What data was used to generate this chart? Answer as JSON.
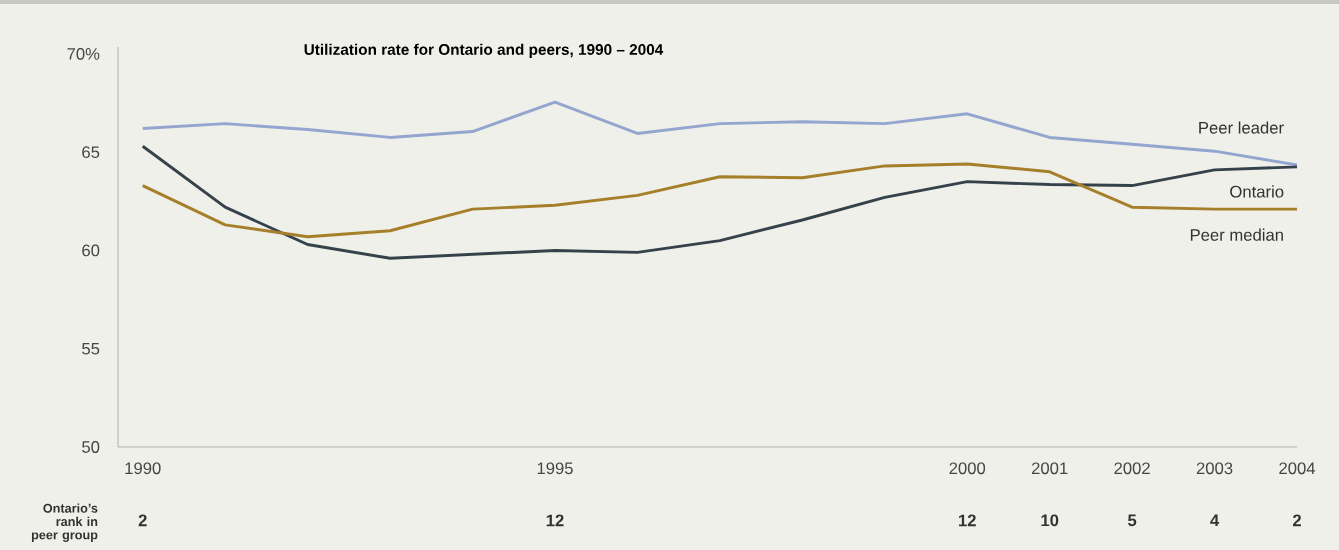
{
  "chart_data": {
    "type": "line",
    "title": "Utilization rate for Ontario and peers, 1990 – 2004",
    "x": [
      1990,
      1991,
      1992,
      1993,
      1994,
      1995,
      1996,
      1997,
      1998,
      1999,
      2000,
      2001,
      2002,
      2003,
      2004
    ],
    "series": [
      {
        "name": "Peer leader",
        "color": "#94a5cf",
        "values": [
          66.2,
          66.45,
          66.15,
          65.75,
          66.05,
          67.55,
          65.95,
          66.45,
          66.55,
          66.45,
          66.95,
          65.75,
          65.4,
          65.05,
          64.35
        ]
      },
      {
        "name": "Ontario",
        "color": "#36424a",
        "values": [
          65.3,
          62.2,
          60.3,
          59.6,
          59.8,
          60.0,
          59.9,
          60.5,
          61.55,
          62.7,
          63.5,
          63.35,
          63.3,
          64.1,
          64.25
        ]
      },
      {
        "name": "Peer median",
        "color": "#a67f2a",
        "values": [
          63.3,
          61.3,
          60.7,
          61.0,
          62.1,
          62.3,
          62.8,
          63.75,
          63.7,
          64.3,
          64.4,
          64.0,
          62.2,
          62.1,
          62.1
        ]
      }
    ],
    "xlim": [
      1989.7,
      2004
    ],
    "xticks": [
      1990,
      1995,
      2000,
      2001,
      2002,
      2003,
      2004
    ],
    "ylim": [
      50,
      70.35
    ],
    "yticks": [
      50,
      55,
      60,
      65,
      {
        "value": 70,
        "label": "70%"
      }
    ],
    "legend": false,
    "annotations": [
      "Ontario’s rank in peer group",
      "2",
      "12",
      "12",
      "10",
      "5",
      "4",
      "2"
    ]
  }
}
